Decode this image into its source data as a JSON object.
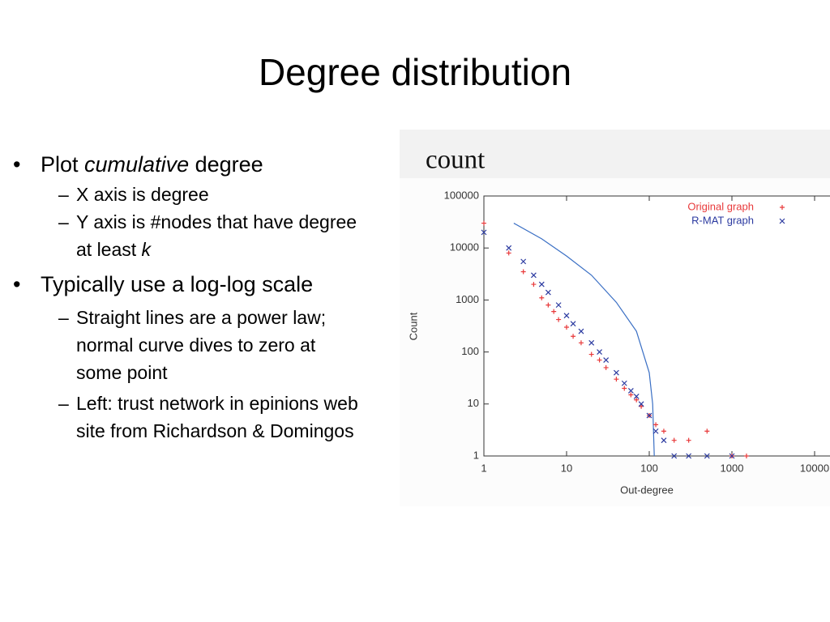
{
  "slide": {
    "title": "Degree distribution",
    "bullets": [
      {
        "runs": [
          "Plot ",
          "cumulative",
          " degree"
        ],
        "sub": [
          {
            "runs": [
              "X axis is degree"
            ]
          },
          {
            "runs": [
              "Y axis is #nodes that have degree at least ",
              "k"
            ]
          }
        ]
      },
      {
        "runs": [
          "Typically use a log-log scale"
        ],
        "sub": [
          {
            "runs": [
              "Straight lines are a power law; normal curve dives to zero at some point"
            ]
          },
          {
            "runs": [
              "Left: trust network in epinions web site from Richardson & Domingos"
            ]
          }
        ]
      }
    ]
  },
  "chart_data": {
    "type": "scatter",
    "caption": "count",
    "xlabel": "Out-degree",
    "ylabel": "Count",
    "xscale": "log",
    "yscale": "log",
    "xlim": [
      1,
      10000
    ],
    "ylim": [
      1,
      100000
    ],
    "xticks": [
      1,
      10,
      100,
      1000,
      10000
    ],
    "yticks": [
      1,
      10,
      100,
      1000,
      10000,
      100000
    ],
    "legend": "top-right",
    "series": [
      {
        "name": "Original graph",
        "color": "#e8393a",
        "marker": "+",
        "x": [
          1,
          2,
          3,
          4,
          5,
          6,
          7,
          8,
          10,
          12,
          15,
          20,
          25,
          30,
          40,
          50,
          60,
          70,
          80,
          100,
          120,
          150,
          200,
          300,
          500,
          1000,
          1500
        ],
        "values": [
          30000,
          8000,
          3500,
          2000,
          1100,
          800,
          600,
          420,
          300,
          200,
          150,
          90,
          70,
          50,
          30,
          20,
          15,
          12,
          9,
          6,
          4,
          3,
          2,
          2,
          3,
          1,
          1
        ]
      },
      {
        "name": "R-MAT graph",
        "color": "#2b3aa0",
        "marker": "x",
        "x": [
          1,
          2,
          3,
          4,
          5,
          6,
          8,
          10,
          12,
          15,
          20,
          25,
          30,
          40,
          50,
          60,
          70,
          80,
          100,
          120,
          150,
          200,
          300,
          500,
          1000
        ],
        "values": [
          20000,
          10000,
          5500,
          3000,
          2000,
          1400,
          800,
          500,
          350,
          250,
          150,
          100,
          70,
          40,
          25,
          18,
          14,
          10,
          6,
          3,
          2,
          1,
          1,
          1,
          1
        ]
      }
    ],
    "curve": {
      "color": "#3a6fc4",
      "x": [
        2.3,
        5,
        10,
        20,
        40,
        70,
        100,
        110,
        115
      ],
      "values": [
        30000,
        15000,
        7000,
        3000,
        900,
        250,
        40,
        10,
        1
      ]
    }
  }
}
